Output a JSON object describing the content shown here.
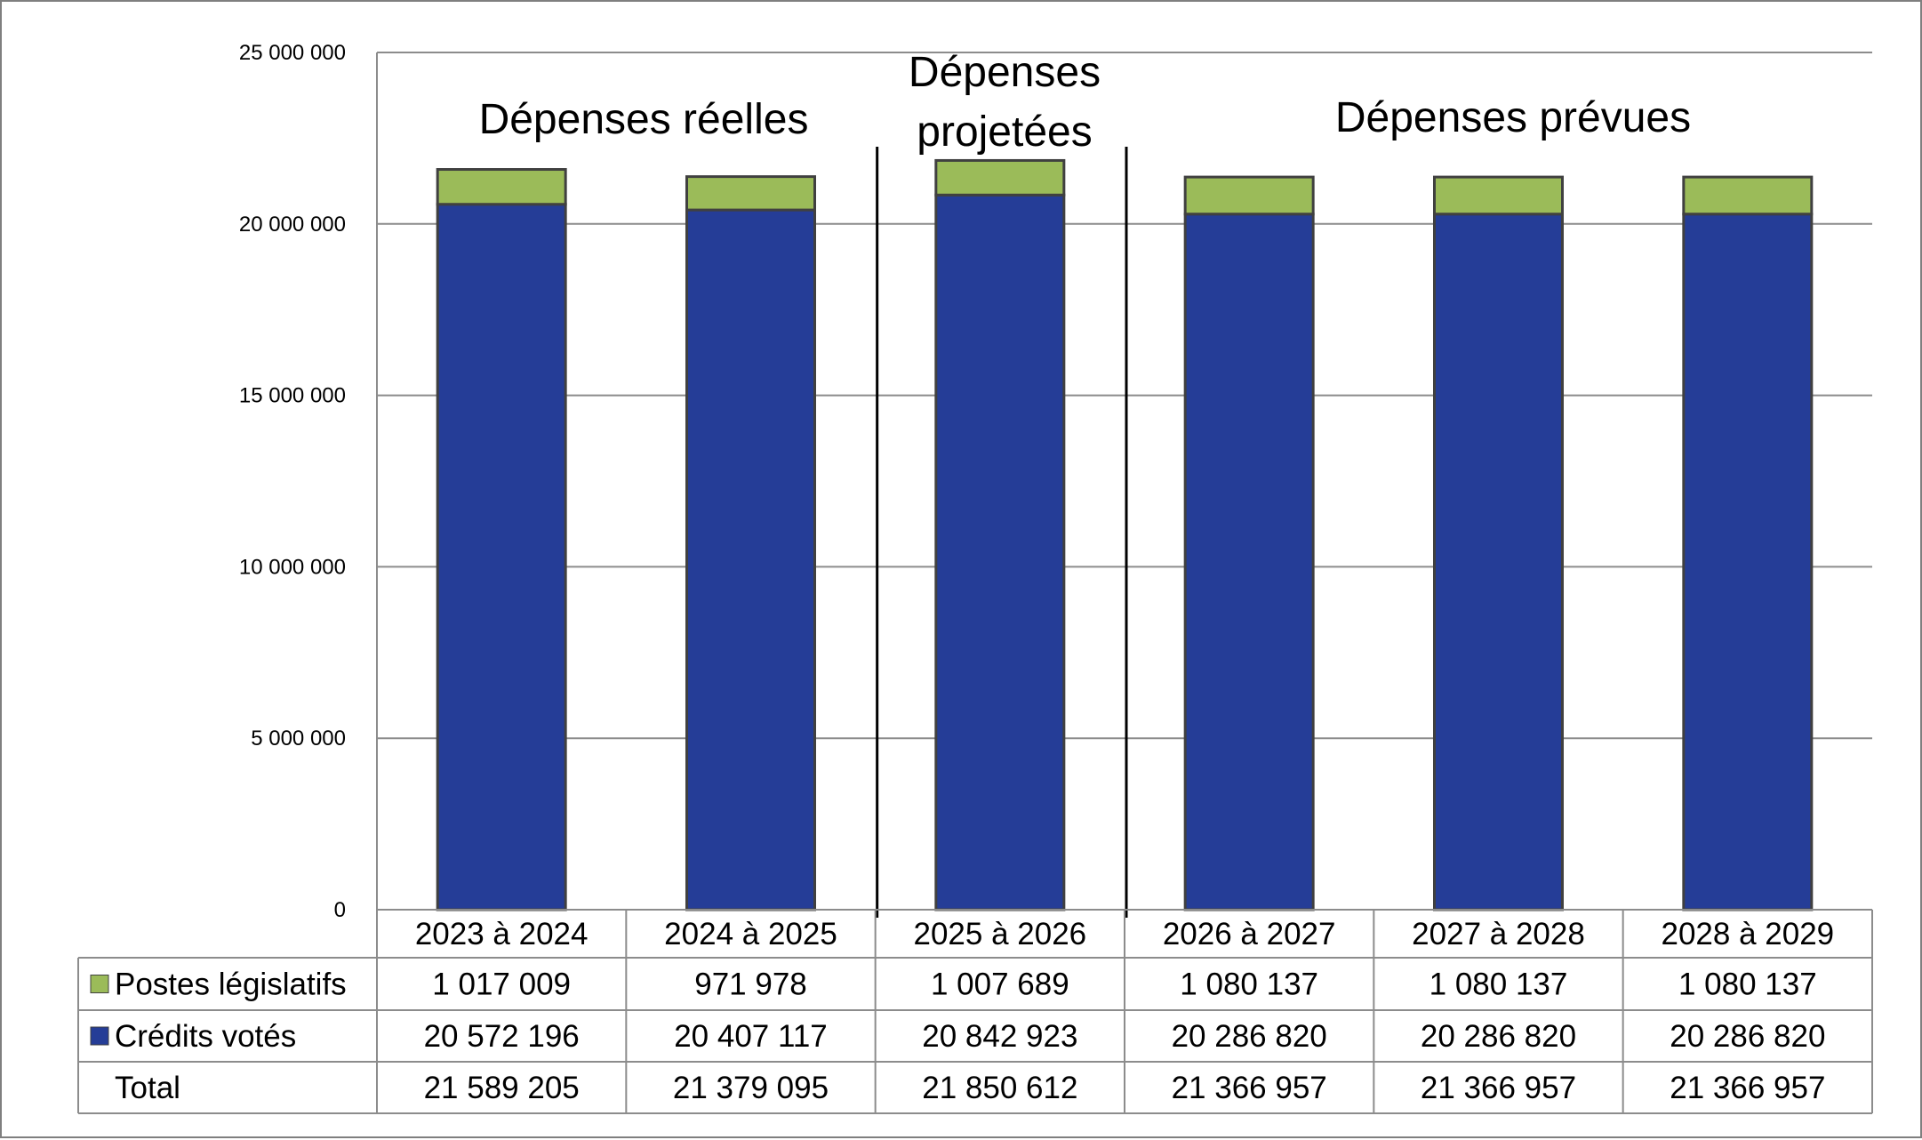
{
  "chart_data": {
    "type": "bar",
    "stacked": true,
    "ylim": [
      0,
      25000000
    ],
    "yticks": [
      "0",
      "5 000 000",
      "10 000 000",
      "15 000 000",
      "20 000 000",
      "25 000 000"
    ],
    "ytick_values": [
      0,
      5000000,
      10000000,
      15000000,
      20000000,
      25000000
    ],
    "grid": true,
    "categories": [
      "2023 à 2024",
      "2024 à 2025",
      "2025 à 2026",
      "2026 à 2027",
      "2027 à 2028",
      "2028 à 2029"
    ],
    "series": [
      {
        "name": "Crédits votés",
        "color": "#253D97",
        "values": [
          20572196,
          20407117,
          20842923,
          20286820,
          20286820,
          20286820
        ],
        "labels": [
          "20 572 196",
          "20 407 117",
          "20 842 923",
          "20 286 820",
          "20 286 820",
          "20 286 820"
        ]
      },
      {
        "name": "Postes législatifs",
        "color": "#9BBB59",
        "values": [
          1017009,
          971978,
          1007689,
          1080137,
          1080137,
          1080137
        ],
        "labels": [
          "1 017 009",
          "971 978",
          "1 007 689",
          "1 080 137",
          "1 080 137",
          "1 080 137"
        ]
      }
    ],
    "total": {
      "name": "Total",
      "labels": [
        "21 589 205",
        "21 379 095",
        "21 850 612",
        "21 366 957",
        "21 366 957",
        "21 366 957"
      ]
    },
    "annotations": [
      "Dépenses réelles",
      "Dépenses projetées",
      "Dépenses prévues"
    ],
    "table_row_order": [
      "Postes législatifs",
      "Crédits votés",
      "Total"
    ]
  }
}
